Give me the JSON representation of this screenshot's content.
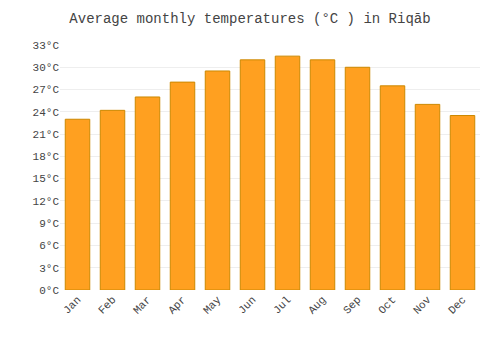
{
  "chart_data": {
    "type": "bar",
    "title": "Average monthly temperatures (°C ) in Riqāb",
    "categories": [
      "Jan",
      "Feb",
      "Mar",
      "Apr",
      "May",
      "Jun",
      "Jul",
      "Aug",
      "Sep",
      "Oct",
      "Nov",
      "Dec"
    ],
    "values": [
      23.0,
      24.2,
      26.0,
      28.0,
      29.5,
      31.0,
      31.5,
      31.0,
      30.0,
      27.5,
      25.0,
      23.5
    ],
    "color": "#FFA020",
    "ylim": [
      0,
      33
    ],
    "yticks": [
      {
        "value": 0,
        "label": "0°C"
      },
      {
        "value": 3,
        "label": "3°C"
      },
      {
        "value": 6,
        "label": "6°C"
      },
      {
        "value": 9,
        "label": "9°C"
      },
      {
        "value": 12,
        "label": "12°C"
      },
      {
        "value": 15,
        "label": "15°C"
      },
      {
        "value": 18,
        "label": "18°C"
      },
      {
        "value": 21,
        "label": "21°C"
      },
      {
        "value": 24,
        "label": "24°C"
      },
      {
        "value": 27,
        "label": "27°C"
      },
      {
        "value": 30,
        "label": "30°C"
      },
      {
        "value": 33,
        "label": "33°C"
      }
    ],
    "grid": true
  }
}
